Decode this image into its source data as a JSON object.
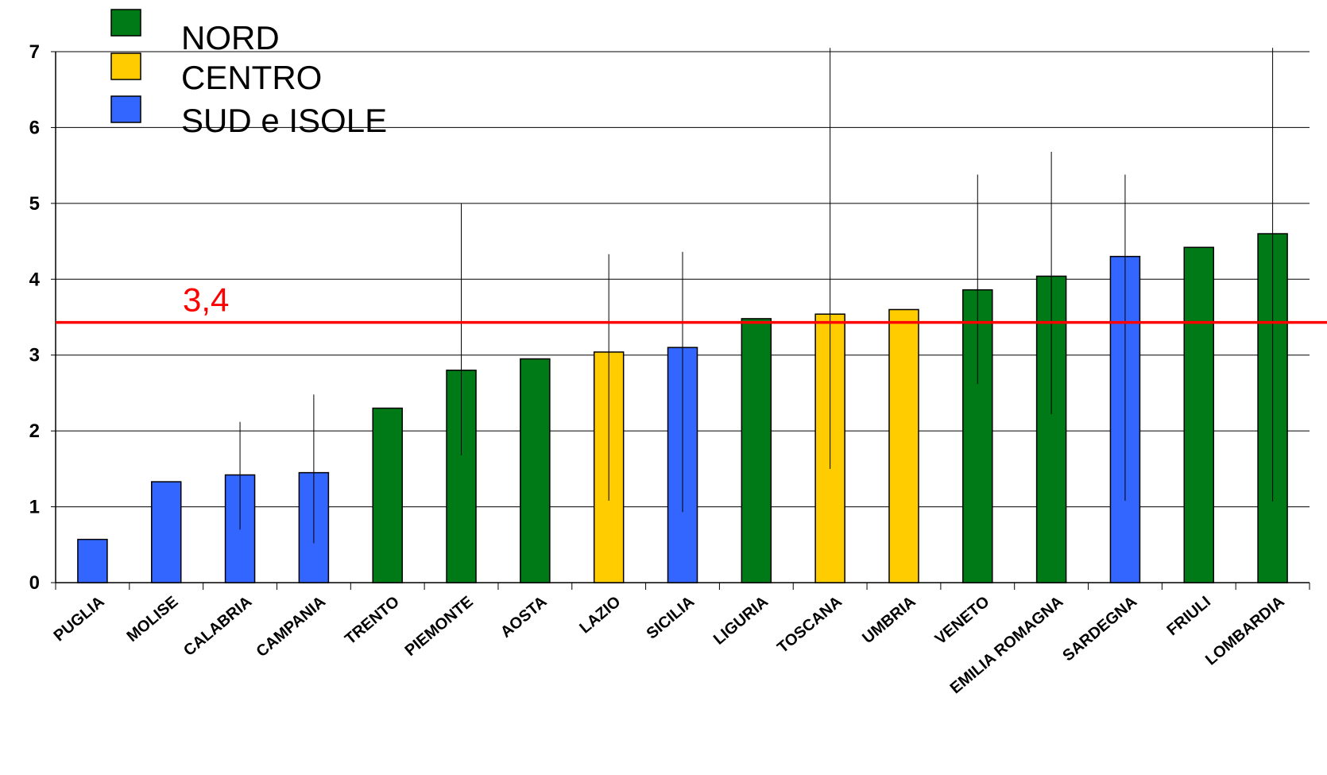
{
  "chart_data": {
    "type": "bar",
    "categories": [
      "PUGLIA",
      "MOLISE",
      "CALABRIA",
      "CAMPANIA",
      "TRENTO",
      "PIEMONTE",
      "AOSTA",
      "LAZIO",
      "SICILIA",
      "LIGURIA",
      "TOSCANA",
      "UMBRIA",
      "VENETO",
      "EMILIA ROMAGNA",
      "SARDEGNA",
      "FRIULI",
      "LOMBARDIA"
    ],
    "values": [
      0.57,
      1.33,
      1.42,
      1.45,
      2.3,
      2.8,
      2.95,
      3.04,
      3.1,
      3.48,
      3.54,
      3.6,
      3.86,
      4.04,
      4.3,
      4.42,
      4.6
    ],
    "groups": [
      "SUD e ISOLE",
      "SUD e ISOLE",
      "SUD e ISOLE",
      "SUD e ISOLE",
      "NORD",
      "NORD",
      "NORD",
      "CENTRO",
      "SUD e ISOLE",
      "NORD",
      "CENTRO",
      "CENTRO",
      "NORD",
      "NORD",
      "SUD e ISOLE",
      "NORD",
      "NORD"
    ],
    "error_low": [
      null,
      null,
      0.7,
      0.52,
      null,
      1.68,
      null,
      1.08,
      0.93,
      null,
      1.5,
      null,
      2.62,
      2.22,
      1.08,
      null,
      1.07
    ],
    "error_high": [
      null,
      null,
      2.12,
      2.48,
      null,
      5.0,
      null,
      4.33,
      4.36,
      null,
      7.05,
      null,
      5.38,
      5.68,
      5.38,
      null,
      7.05
    ],
    "reference_line": {
      "value": 3.43,
      "label": "3,4",
      "color": "#ff0000"
    },
    "legend": [
      {
        "label": "NORD",
        "color": "#007a16"
      },
      {
        "label": "CENTRO",
        "color": "#ffcc00"
      },
      {
        "label": "SUD e ISOLE",
        "color": "#3366ff"
      }
    ],
    "legend_position": "top-left",
    "ylim": [
      0,
      7
    ],
    "yticks": [
      "0",
      "1",
      "2",
      "3",
      "4",
      "5",
      "6",
      "7"
    ],
    "grid": true,
    "title": "",
    "xlabel": "",
    "ylabel": ""
  }
}
